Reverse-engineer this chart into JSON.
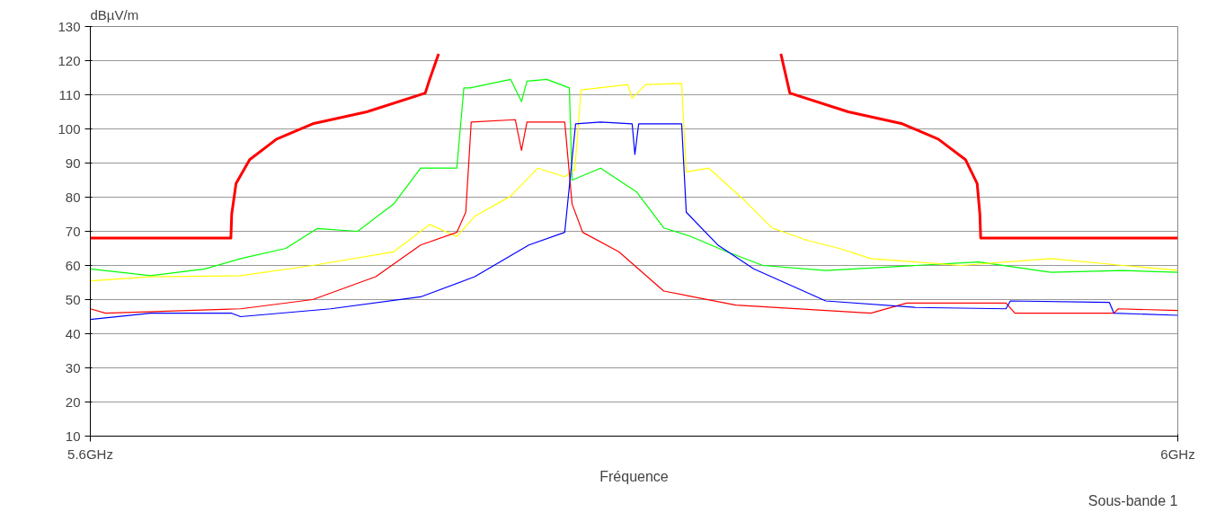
{
  "chart_data": {
    "type": "line",
    "xlabel": "Fréquence",
    "ylabel": "dBµV/m",
    "annotations": [
      "Sous-bande 1"
    ],
    "xlim": [
      5.6,
      6.0
    ],
    "ylim": [
      10,
      130
    ],
    "xticks": [
      {
        "value": 5.6,
        "label": "5.6GHz"
      },
      {
        "value": 6.0,
        "label": "6GHz"
      }
    ],
    "yticks": [
      10,
      20,
      30,
      40,
      50,
      60,
      70,
      80,
      90,
      100,
      110,
      120,
      130
    ],
    "grid": "y",
    "marker": "none",
    "line_style": "solid",
    "series": [
      {
        "color": "#ff0000",
        "x": [
          5.6,
          5.6517,
          5.652,
          5.6536,
          5.6586,
          5.6685,
          5.6818,
          5.7017,
          5.7232,
          5.7248,
          5.7281
        ],
        "values": [
          68,
          68,
          75,
          84,
          91,
          97,
          101.5,
          105,
          110.5,
          114.5,
          122
        ]
      },
      {
        "color": "#ff0000",
        "x": [
          5.854,
          5.8573,
          5.8788,
          5.8987,
          5.9119,
          5.9219,
          5.9262,
          5.9272,
          5.9275,
          6.0
        ],
        "values": [
          122,
          110.5,
          105,
          101.5,
          97,
          91,
          84,
          75,
          68,
          68
        ]
      },
      {
        "color": "#00ff00",
        "x": [
          5.6,
          5.6222,
          5.6421,
          5.6553,
          5.6719,
          5.6834,
          5.6983,
          5.7116,
          5.7215,
          5.7348,
          5.7374,
          5.7397,
          5.7546,
          5.7586,
          5.7606,
          5.7679,
          5.7762,
          5.7772,
          5.7877,
          5.801,
          5.8109,
          5.8209,
          5.8341,
          5.8474,
          5.8705,
          5.9036,
          5.9268,
          5.9533,
          5.9798,
          6.0
        ],
        "values": [
          59,
          57,
          59,
          62,
          65,
          70.8,
          70,
          78,
          88.5,
          88.5,
          112,
          112,
          114.5,
          108,
          114,
          114.5,
          112,
          85,
          88.5,
          81.5,
          71,
          68.5,
          64,
          60,
          58.5,
          60,
          61,
          58,
          58.5,
          58
        ]
      },
      {
        "color": "#ffff00",
        "x": [
          5.6,
          5.6222,
          5.6553,
          5.6818,
          5.7116,
          5.7248,
          5.7348,
          5.7414,
          5.7546,
          5.7646,
          5.7745,
          5.7782,
          5.7805,
          5.7977,
          5.7993,
          5.8043,
          5.8175,
          5.8192,
          5.8275,
          5.8407,
          5.8507,
          5.8639,
          5.8755,
          5.8871,
          5.9202,
          5.9533,
          5.9798,
          6.0
        ],
        "values": [
          55.5,
          56.7,
          57,
          60,
          64,
          72,
          68.5,
          74.4,
          80.3,
          88.5,
          86,
          88,
          111.4,
          113,
          109,
          113,
          113.3,
          87.4,
          88.5,
          79,
          71,
          67.3,
          65,
          62,
          60,
          62,
          60,
          58.6
        ]
      },
      {
        "color": "#ff0000",
        "x": [
          5.6,
          5.6056,
          5.6553,
          5.6818,
          5.705,
          5.7215,
          5.7348,
          5.7381,
          5.7401,
          5.7563,
          5.7586,
          5.7606,
          5.7745,
          5.7772,
          5.7811,
          5.7944,
          5.8109,
          5.8374,
          5.8871,
          5.9003,
          5.9368,
          5.9401,
          5.9765,
          5.9781,
          6.0
        ],
        "values": [
          47.3,
          46,
          47.3,
          50,
          56.7,
          66,
          69.7,
          75.6,
          102,
          102.7,
          93.7,
          102,
          102,
          78,
          69.7,
          64,
          52.5,
          48.4,
          46,
          49,
          49,
          46,
          46,
          47.3,
          46.8
        ]
      },
      {
        "color": "#0000ff",
        "x": [
          5.6,
          5.6222,
          5.652,
          5.6553,
          5.6884,
          5.7215,
          5.7414,
          5.7613,
          5.7745,
          5.7785,
          5.7877,
          5.7993,
          5.8003,
          5.8017,
          5.8175,
          5.8192,
          5.8308,
          5.844,
          5.8705,
          5.9036,
          5.9368,
          5.9384,
          5.9748,
          5.9765,
          6.0
        ],
        "values": [
          44.2,
          46,
          46,
          45,
          47.3,
          50.8,
          56.7,
          66,
          69.7,
          101.5,
          102,
          101.5,
          92.5,
          101.5,
          101.5,
          75.6,
          66,
          59,
          49.6,
          47.7,
          47.3,
          49.6,
          49.2,
          46,
          45.4
        ]
      }
    ]
  }
}
